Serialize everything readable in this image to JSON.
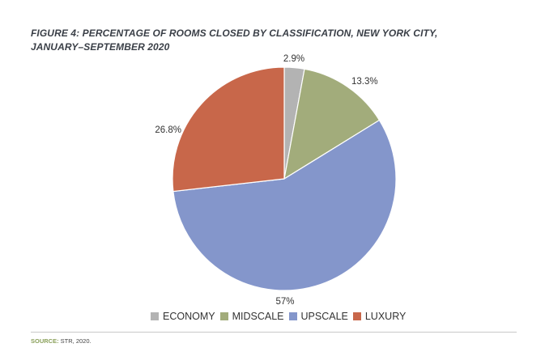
{
  "title_line1": "FIGURE 4: PERCENTAGE OF ROOMS CLOSED BY CLASSIFICATION, NEW YORK CITY,",
  "title_line2": "JANUARY–SEPTEMBER 2020",
  "source_label": "SOURCE:",
  "source_text": " STR, 2020.",
  "chart_data": {
    "type": "pie",
    "title": "FIGURE 4: PERCENTAGE OF ROOMS CLOSED BY CLASSIFICATION, NEW YORK CITY, JANUARY–SEPTEMBER 2020",
    "legend_position": "bottom",
    "slices": [
      {
        "name": "ECONOMY",
        "value": 2.9,
        "label": "2.9%",
        "color": "#b3b3b3"
      },
      {
        "name": "MIDSCALE",
        "value": 13.3,
        "label": "13.3%",
        "color": "#a2ac7b"
      },
      {
        "name": "UPSCALE",
        "value": 57,
        "label": "57%",
        "color": "#8496cb"
      },
      {
        "name": "LUXURY",
        "value": 26.8,
        "label": "26.8%",
        "color": "#c8674a"
      }
    ]
  }
}
